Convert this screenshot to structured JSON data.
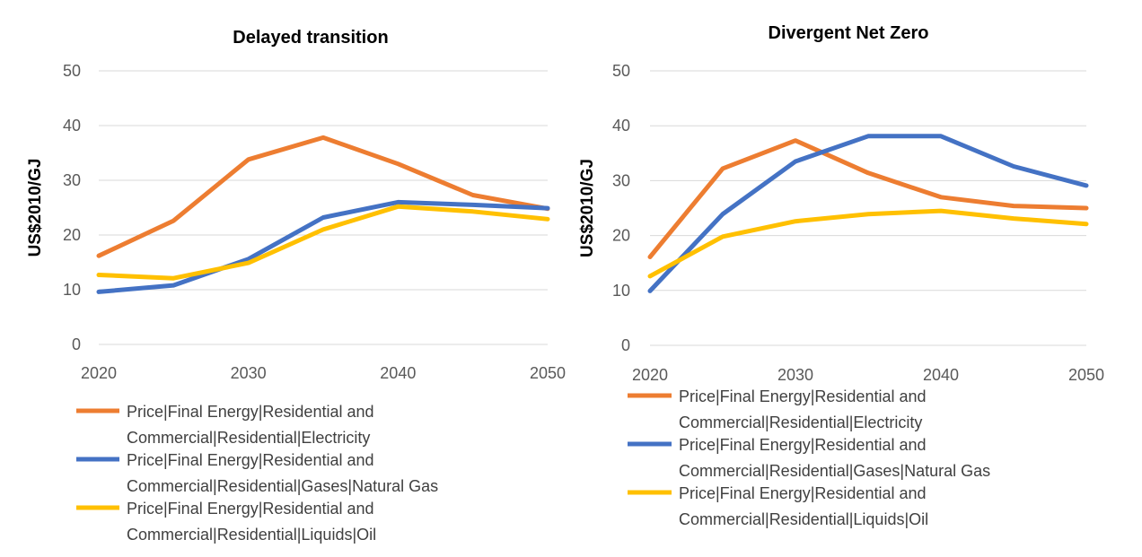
{
  "colors": {
    "electricity": "#ED7D31",
    "gas": "#4472C4",
    "oil": "#FFC000"
  },
  "chart_data": [
    {
      "type": "line",
      "title": "Delayed transition",
      "ylabel": "US$2010/GJ",
      "xlabel": "",
      "x": [
        2020,
        2025,
        2030,
        2035,
        2040,
        2045,
        2050
      ],
      "xticks": [
        "2020",
        "2030",
        "2040",
        "2050"
      ],
      "yticks": [
        "0",
        "10",
        "20",
        "30",
        "40",
        "50"
      ],
      "xlim": [
        2020,
        2050
      ],
      "ylim": [
        0,
        50
      ],
      "grid": true,
      "legend_position": "bottom",
      "series": [
        {
          "name_lines": [
            "Price|Final Energy|Residential and",
            "Commercial|Residential|Electricity"
          ],
          "color_key": "electricity",
          "values": [
            16.2,
            22.6,
            33.8,
            37.8,
            33.0,
            27.3,
            24.8
          ]
        },
        {
          "name_lines": [
            "Price|Final Energy|Residential and",
            "Commercial|Residential|Gases|Natural Gas"
          ],
          "color_key": "gas",
          "values": [
            9.6,
            10.8,
            15.6,
            23.2,
            26.0,
            25.5,
            24.9
          ]
        },
        {
          "name_lines": [
            "Price|Final Energy|Residential and",
            "Commercial|Residential|Liquids|Oil"
          ],
          "color_key": "oil",
          "values": [
            12.7,
            12.1,
            14.9,
            21.0,
            25.2,
            24.3,
            22.9
          ]
        }
      ]
    },
    {
      "type": "line",
      "title": "Divergent Net Zero",
      "ylabel": "US$2010/GJ",
      "xlabel": "",
      "x": [
        2020,
        2025,
        2030,
        2035,
        2040,
        2045,
        2050
      ],
      "xticks": [
        "2020",
        "2030",
        "2040",
        "2050"
      ],
      "yticks": [
        "0",
        "10",
        "20",
        "30",
        "40",
        "50"
      ],
      "xlim": [
        2020,
        2050
      ],
      "ylim": [
        0,
        50
      ],
      "grid": true,
      "legend_position": "bottom",
      "series": [
        {
          "name_lines": [
            "Price|Final Energy|Residential and",
            "Commercial|Residential|Electricity"
          ],
          "color_key": "electricity",
          "values": [
            16.1,
            32.2,
            37.3,
            31.4,
            27.0,
            25.4,
            25.0
          ]
        },
        {
          "name_lines": [
            "Price|Final Energy|Residential and",
            "Commercial|Residential|Gases|Natural Gas"
          ],
          "color_key": "gas",
          "values": [
            9.9,
            23.9,
            33.5,
            38.1,
            38.1,
            32.6,
            29.1
          ]
        },
        {
          "name_lines": [
            "Price|Final Energy|Residential and",
            "Commercial|Residential|Liquids|Oil"
          ],
          "color_key": "oil",
          "values": [
            12.6,
            19.8,
            22.6,
            23.9,
            24.5,
            23.1,
            22.1
          ]
        }
      ]
    }
  ]
}
